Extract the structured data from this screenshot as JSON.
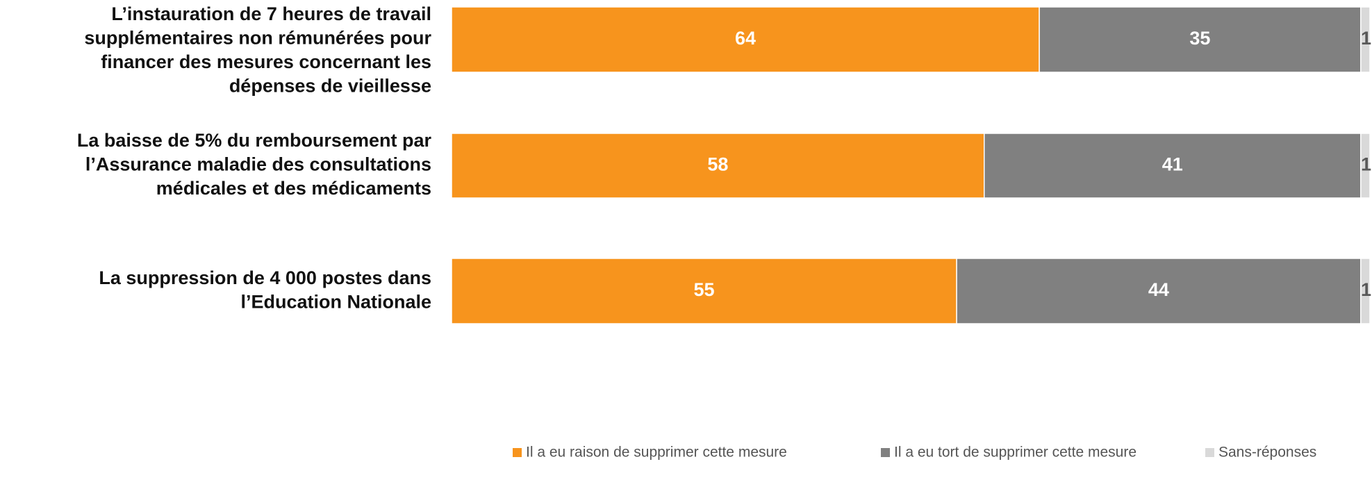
{
  "chart_data": {
    "type": "stacked_barh",
    "categories": [
      [
        "L’instauration de 7 heures de travail",
        "supplémentaires non rémunérées pour",
        "financer des mesures concernant les",
        "dépenses de vieillesse"
      ],
      [
        "La baisse de 5% du remboursement par",
        "l’Assurance maladie des consultations",
        "médicales et des médicaments"
      ],
      [
        "La suppression de 4 000 postes dans",
        "l’Education Nationale"
      ]
    ],
    "series": [
      {
        "name": "Il a eu raison de supprimer cette mesure",
        "color": "#f7941d",
        "label_color": "#ffffff",
        "values": [
          64,
          58,
          55
        ]
      },
      {
        "name": "Il a eu tort de supprimer cette mesure",
        "color": "#808080",
        "label_color": "#ffffff",
        "values": [
          35,
          41,
          44
        ]
      },
      {
        "name": "Sans-réponses",
        "color": "#d9d9d9",
        "label_color": "#595959",
        "values": [
          1,
          1,
          1
        ]
      }
    ],
    "xlim": [
      0,
      100
    ]
  }
}
